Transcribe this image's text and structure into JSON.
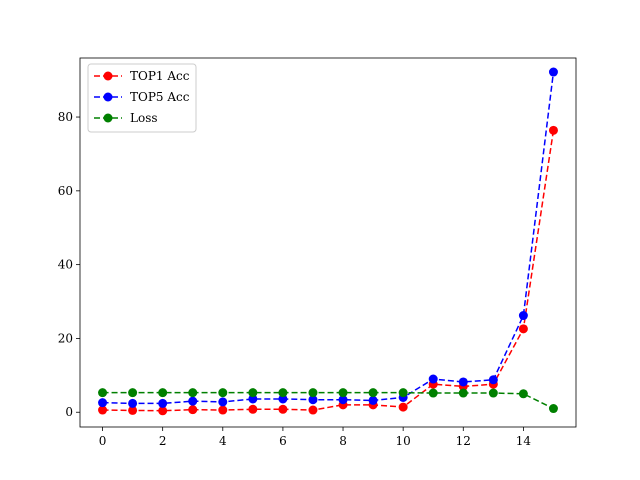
{
  "chart_data": {
    "type": "line",
    "title": "",
    "xlabel": "",
    "ylabel": "",
    "x": [
      0,
      1,
      2,
      3,
      4,
      5,
      6,
      7,
      8,
      9,
      10,
      11,
      12,
      13,
      14,
      15
    ],
    "xlim": [
      -0.75,
      15.75
    ],
    "ylim": [
      -4,
      96
    ],
    "xticks": [
      0,
      2,
      4,
      6,
      8,
      10,
      12,
      14
    ],
    "yticks": [
      0,
      20,
      40,
      60,
      80
    ],
    "grid": false,
    "legend_position": "top-left",
    "series": [
      {
        "name": "TOP1 Acc",
        "color": "#ff0000",
        "values": [
          0.6,
          0.5,
          0.4,
          0.7,
          0.6,
          0.8,
          0.8,
          0.6,
          2.0,
          2.0,
          1.4,
          7.6,
          7.0,
          7.6,
          22.6,
          76.4
        ]
      },
      {
        "name": "TOP5 Acc",
        "color": "#0000ff",
        "values": [
          2.6,
          2.4,
          2.4,
          3.0,
          2.8,
          3.6,
          3.6,
          3.4,
          3.4,
          3.2,
          4.0,
          9.0,
          8.2,
          8.8,
          26.2,
          92.2
        ]
      },
      {
        "name": "Loss",
        "color": "#008000",
        "values": [
          5.3,
          5.3,
          5.3,
          5.3,
          5.3,
          5.3,
          5.3,
          5.3,
          5.3,
          5.3,
          5.3,
          5.2,
          5.2,
          5.2,
          5.0,
          1.0
        ]
      }
    ]
  }
}
